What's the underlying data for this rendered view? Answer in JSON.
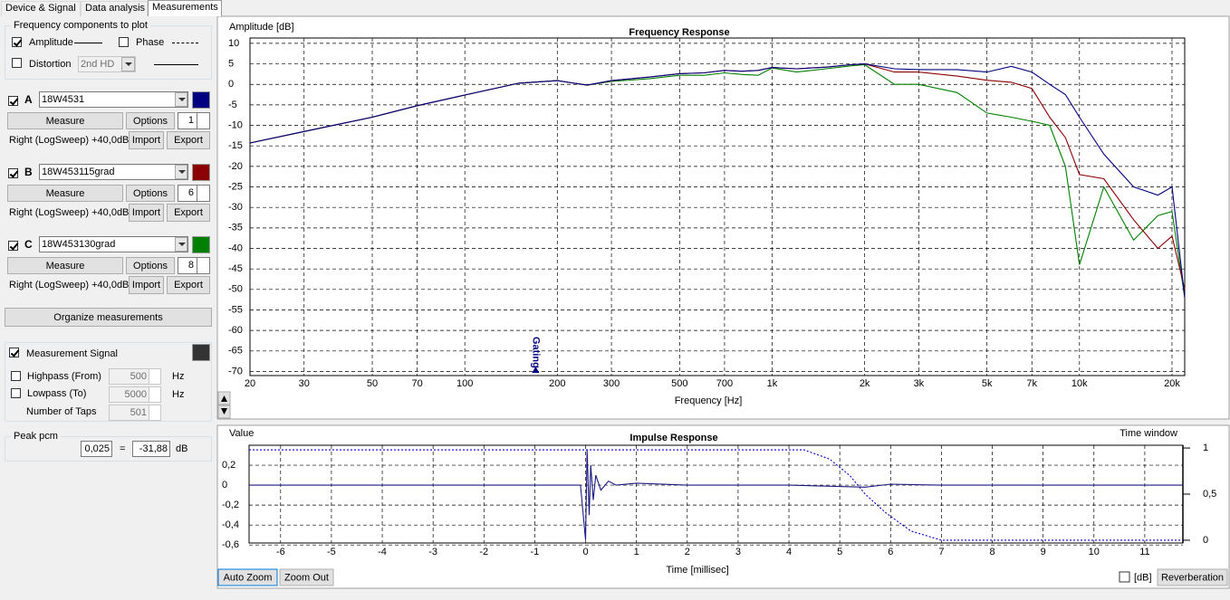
{
  "tabs": [
    "Device & Signal",
    "Data analysis",
    "Measurements"
  ],
  "frequency_components": {
    "title": "Frequency components to plot",
    "amplitude": {
      "label": "Amplitude",
      "checked": true
    },
    "phase": {
      "label": "Phase",
      "checked": false
    },
    "distortion": {
      "label": "Distortion",
      "checked": false,
      "selection": "2nd HD"
    }
  },
  "measurements": [
    {
      "letter": "A",
      "name": "18W4531",
      "checked": true,
      "measure": "Measure",
      "options": "Options",
      "count": 1,
      "info": "Right (LogSweep) +40,0dB",
      "import": "Import",
      "export": "Export"
    },
    {
      "letter": "B",
      "name": "18W453115grad",
      "checked": true,
      "measure": "Measure",
      "options": "Options",
      "count": 6,
      "info": "Right (LogSweep) +40,0dB",
      "import": "Import",
      "export": "Export"
    },
    {
      "letter": "C",
      "name": "18W453130grad",
      "checked": true,
      "measure": "Measure",
      "options": "Options",
      "count": 8,
      "info": "Right (LogSweep) +40,0dB",
      "import": "Import",
      "export": "Export"
    }
  ],
  "organize": "Organize measurements",
  "signal": {
    "label": "Measurement Signal",
    "checked": true,
    "color": "#333333",
    "highpass": {
      "label": "Highpass (From)",
      "checked": false,
      "value": 500,
      "unit": "Hz"
    },
    "lowpass": {
      "label": "Lowpass (To)",
      "checked": false,
      "value": 5000,
      "unit": "Hz"
    },
    "taps": {
      "label": "Number of Taps",
      "value": 501
    }
  },
  "peak": {
    "title": "Peak pcm",
    "pcm": "0,025",
    "equals": "=",
    "db": "-31,88",
    "unit": "dB"
  },
  "chart_data": [
    {
      "type": "line",
      "title": "Frequency Response",
      "ylabel": "Amplitude [dB]",
      "xlabel": "Frequency [Hz]",
      "xlog": true,
      "grid": true,
      "x": [
        20,
        30,
        50,
        70,
        100,
        150,
        200,
        250,
        300,
        400,
        500,
        600,
        700,
        800,
        900,
        1000,
        1200,
        1500,
        1800,
        2000,
        2500,
        3000,
        4000,
        5000,
        6000,
        7000,
        8000,
        9000,
        10000,
        12000,
        15000,
        18000,
        20000,
        22000
      ],
      "series": [
        {
          "color": "#000080",
          "values": [
            -14.3,
            -11.5,
            -8,
            -5.2,
            -2.6,
            0.3,
            0.9,
            -0.2,
            0.9,
            1.8,
            2.6,
            2.8,
            3.4,
            3.2,
            3.4,
            4.1,
            3.8,
            4.2,
            4.8,
            5,
            3.8,
            3.6,
            3.6,
            3,
            4.4,
            3,
            0,
            -2.5,
            -8,
            -17,
            -25,
            -27,
            -25,
            -52
          ]
        },
        {
          "color": "#8b0000",
          "values": [
            -14.3,
            -11.5,
            -8,
            -5.2,
            -2.6,
            0.3,
            0.9,
            -0.2,
            0.9,
            1.8,
            2.6,
            2.8,
            3.4,
            3.2,
            3.4,
            4.1,
            3.8,
            4.2,
            4.8,
            5,
            3,
            3,
            2,
            1,
            0.5,
            -1,
            -8,
            -13,
            -22,
            -23,
            -33,
            -40,
            -37,
            -50
          ]
        },
        {
          "color": "#008000",
          "values": [
            -14.3,
            -11.5,
            -8,
            -5.2,
            -2.6,
            0.3,
            0.9,
            -0.2,
            0.7,
            1.4,
            2.2,
            2.2,
            2.8,
            2.4,
            2.2,
            4,
            3,
            3.8,
            4.5,
            4.8,
            0,
            0,
            -2,
            -7,
            -8,
            -9,
            -10,
            -20,
            -44,
            -25,
            -38,
            -32,
            -31,
            -52
          ]
        }
      ],
      "annotations": [
        {
          "text": "Gating",
          "x": 170
        }
      ],
      "xlim": [
        20,
        22000
      ],
      "ylim": [
        -71,
        11.3
      ],
      "xticks": [
        20,
        30,
        50,
        70,
        100,
        200,
        300,
        500,
        700,
        {
          "value": 1000,
          "label": "1k"
        },
        {
          "value": 2000,
          "label": "2k"
        },
        {
          "value": 3000,
          "label": "3k"
        },
        {
          "value": 5000,
          "label": "5k"
        },
        {
          "value": 7000,
          "label": "7k"
        },
        {
          "value": 10000,
          "label": "10k"
        },
        {
          "value": 20000,
          "label": "20k"
        }
      ],
      "yticks": [
        10,
        5,
        0,
        -5,
        -10,
        -15,
        -20,
        -25,
        -30,
        -35,
        -40,
        -45,
        -50,
        -55,
        -60,
        -65,
        -70
      ]
    },
    {
      "type": "line",
      "title": "Impulse Response",
      "ylabel": "Value",
      "y2label": "Time window",
      "xlabel": "Time [millisec]",
      "xlog": false,
      "grid": true,
      "series": [
        {
          "color": "#1a1a80",
          "x": [
            -6.62,
            -0.1,
            0,
            0.03,
            0.07,
            0.1,
            0.15,
            0.2,
            0.3,
            0.45,
            0.6,
            1,
            2,
            4,
            5.5,
            6,
            7,
            11.75
          ],
          "values": [
            0,
            0,
            -0.55,
            0.35,
            -0.3,
            0.2,
            -0.15,
            0.1,
            -0.05,
            0.04,
            0,
            0.02,
            0,
            0,
            -0.02,
            0.01,
            0,
            0
          ]
        },
        {
          "color": "#0000cc",
          "axis": "y2",
          "style": "dotted",
          "x": [
            -6.62,
            4.3,
            4.8,
            5.2,
            5.5,
            5.9,
            6.4,
            7,
            11.75
          ],
          "values": [
            0.98,
            0.98,
            0.88,
            0.7,
            0.5,
            0.3,
            0.1,
            0,
            0
          ]
        }
      ],
      "xlim": [
        -6.62,
        11.75
      ],
      "ylim": [
        -0.58,
        0.4
      ],
      "y2lim": [
        -0.03,
        1.03
      ],
      "xticks": [
        -6,
        -5,
        -4,
        -3,
        -2,
        -1,
        0,
        1,
        2,
        3,
        4,
        5,
        6,
        7,
        8,
        9,
        10,
        11
      ],
      "yticks": [
        {
          "value": 0.2,
          "label": "0,2"
        },
        0,
        {
          "value": -0.2,
          "label": "-0,2"
        },
        {
          "value": -0.4,
          "label": "-0,4"
        },
        {
          "value": -0.6,
          "label": "-0,6"
        }
      ],
      "y2ticks": [
        1,
        {
          "value": 0.5,
          "label": "0,5"
        },
        0
      ]
    }
  ],
  "impulse_controls": {
    "auto_zoom": "Auto Zoom",
    "zoom_out": "Zoom Out",
    "db": {
      "label": "[dB]",
      "checked": false
    },
    "reverberation": "Reverberation"
  }
}
